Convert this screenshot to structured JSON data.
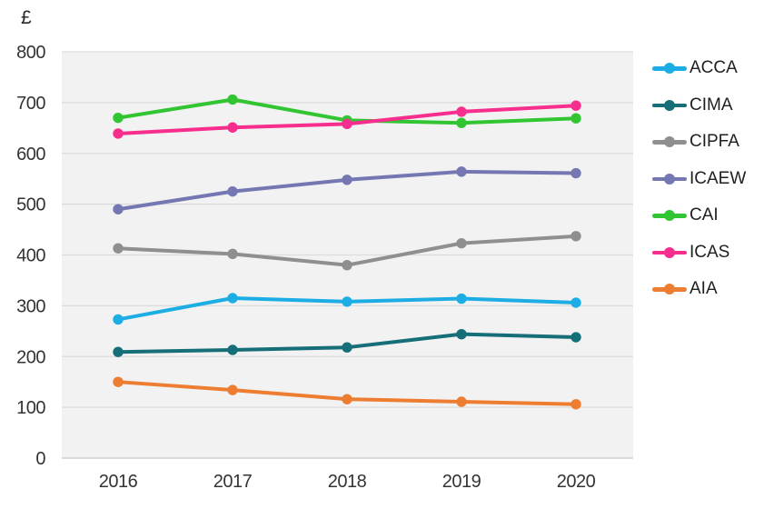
{
  "chart_data": {
    "type": "line",
    "title": "",
    "unit_label": "£",
    "xlabel": "",
    "ylabel": "£",
    "categories": [
      "2016",
      "2017",
      "2018",
      "2019",
      "2020"
    ],
    "yticks": [
      0,
      100,
      200,
      300,
      400,
      500,
      600,
      700,
      800
    ],
    "ylim": [
      0,
      800
    ],
    "grid": true,
    "legend_position": "right",
    "colors": {
      "plot_bg": "#F2F2F2",
      "grid_color": "#DBDBDB",
      "baseline_color": "#C8C8C8",
      "axis_text_color": "#333333",
      "legend_text_color": "#1F1F1F"
    },
    "series": [
      {
        "name": "ACCA",
        "color": "#1CADE4",
        "values": [
          273,
          315,
          308,
          314,
          306
        ]
      },
      {
        "name": "CIMA",
        "color": "#156E78",
        "values": [
          209,
          213,
          218,
          244,
          238
        ]
      },
      {
        "name": "CIPFA",
        "color": "#8F8F8F",
        "values": [
          413,
          402,
          380,
          423,
          437
        ]
      },
      {
        "name": "ICAEW",
        "color": "#7577B2",
        "values": [
          490,
          525,
          548,
          564,
          561
        ]
      },
      {
        "name": "CAI",
        "color": "#32C532",
        "values": [
          670,
          706,
          665,
          660,
          669
        ]
      },
      {
        "name": "ICAS",
        "color": "#F72E8D",
        "values": [
          639,
          651,
          658,
          682,
          694
        ]
      },
      {
        "name": "AIA",
        "color": "#ED7D31",
        "values": [
          150,
          134,
          116,
          111,
          106
        ]
      }
    ]
  }
}
